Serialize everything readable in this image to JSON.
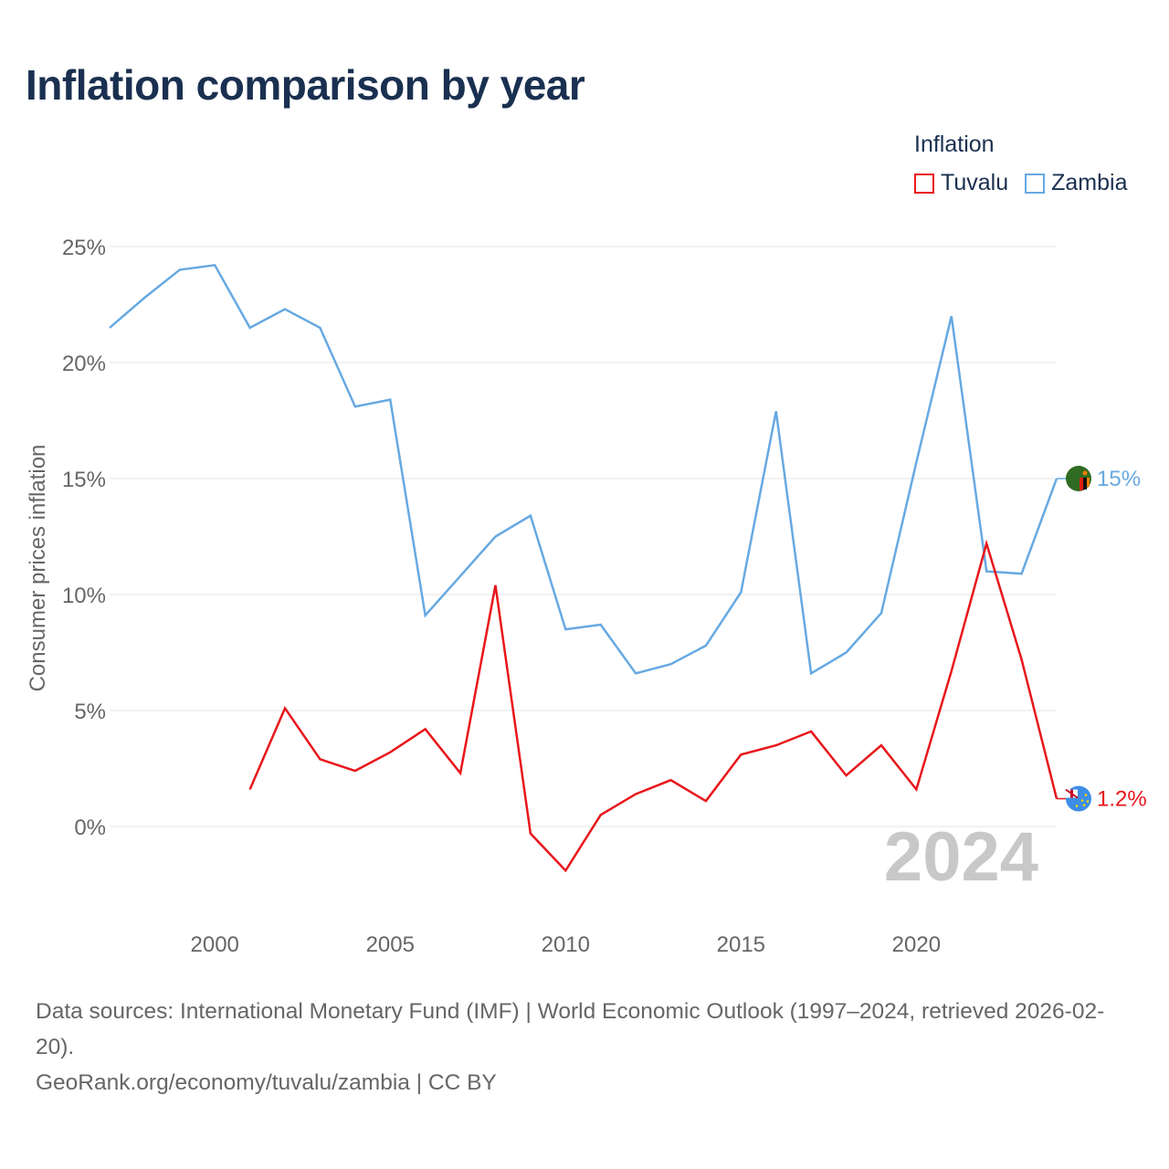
{
  "page": {
    "title": "Inflation comparison by year"
  },
  "legend": {
    "title": "Inflation",
    "items": [
      {
        "name": "Tuvalu",
        "color": "#e8161b"
      },
      {
        "name": "Zambia",
        "color": "#67a9e2"
      }
    ]
  },
  "footer": {
    "sources": "Data sources: International Monetary Fund (IMF) | World Economic Outlook (1997–2024, retrieved 2026-02-20).",
    "credit": "GeoRank.org/economy/tuvalu/zambia | CC BY"
  },
  "chart_data": {
    "type": "line",
    "title": "Inflation comparison by year",
    "xlabel": "",
    "ylabel": "Consumer prices inflation",
    "xlim": [
      1997,
      2024
    ],
    "ylim": [
      -3,
      25
    ],
    "x_ticks": [
      2000,
      2005,
      2010,
      2015,
      2020
    ],
    "y_ticks": [
      0,
      5,
      10,
      15,
      20,
      25
    ],
    "y_tick_labels": [
      "0%",
      "5%",
      "10%",
      "15%",
      "20%",
      "25%"
    ],
    "grid": true,
    "watermark_year": "2024",
    "series": [
      {
        "name": "Zambia",
        "color": "#67a9e2",
        "x": [
          1997,
          1998,
          1999,
          2000,
          2001,
          2002,
          2003,
          2004,
          2005,
          2006,
          2007,
          2008,
          2009,
          2010,
          2011,
          2012,
          2013,
          2014,
          2015,
          2016,
          2017,
          2018,
          2019,
          2020,
          2021,
          2022,
          2023,
          2024
        ],
        "values": [
          21.5,
          22.8,
          24.0,
          24.2,
          21.5,
          22.3,
          21.5,
          18.1,
          18.4,
          9.1,
          10.8,
          12.5,
          13.4,
          8.5,
          8.7,
          6.6,
          7.0,
          7.8,
          10.1,
          17.9,
          6.6,
          7.5,
          9.2,
          15.7,
          22.0,
          11.0,
          10.9,
          15.0
        ],
        "end_label": "15%"
      },
      {
        "name": "Tuvalu",
        "color": "#e8161b",
        "x": [
          2001,
          2002,
          2003,
          2004,
          2005,
          2006,
          2007,
          2008,
          2009,
          2010,
          2011,
          2012,
          2013,
          2014,
          2015,
          2016,
          2017,
          2018,
          2019,
          2020,
          2021,
          2022,
          2023,
          2024
        ],
        "values": [
          1.6,
          5.1,
          2.9,
          2.4,
          3.2,
          4.2,
          2.3,
          10.4,
          -0.3,
          -1.9,
          0.5,
          1.4,
          2.0,
          1.1,
          3.1,
          3.5,
          4.1,
          2.2,
          3.5,
          1.6,
          6.7,
          12.2,
          7.2,
          1.2
        ],
        "end_label": "1.2%"
      }
    ]
  }
}
